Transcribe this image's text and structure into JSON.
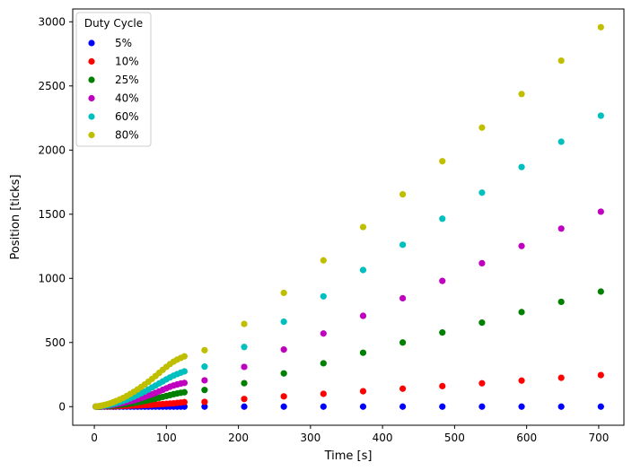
{
  "chart_data": {
    "type": "scatter",
    "title": "",
    "xlabel": "Time [s]",
    "ylabel": "Position [ticks]",
    "xlim": [
      -30,
      735
    ],
    "ylim": [
      -145,
      3100
    ],
    "xticks": [
      0,
      100,
      200,
      300,
      400,
      500,
      600,
      700
    ],
    "yticks": [
      0,
      500,
      1000,
      1500,
      2000,
      2500,
      3000
    ],
    "grid": false,
    "legend": {
      "title": "Duty Cycle",
      "placement": "top-left"
    },
    "x": [
      2,
      4,
      6,
      8,
      10,
      14,
      18,
      22,
      26,
      30,
      35,
      40,
      45,
      50,
      55,
      60,
      65,
      70,
      75,
      80,
      85,
      90,
      95,
      100,
      105,
      110,
      115,
      120,
      125,
      153,
      208,
      263,
      318,
      373,
      428,
      483,
      538,
      593,
      648,
      703
    ],
    "series": [
      {
        "name": "5%",
        "color": "#0000ff",
        "values": [
          0,
          0,
          0,
          0,
          0,
          0,
          0,
          0,
          0,
          0,
          0,
          0,
          0,
          0,
          0,
          0,
          0,
          0,
          0,
          0,
          0,
          0,
          0,
          0,
          0,
          0,
          0,
          0,
          0,
          0,
          0,
          0,
          0,
          0,
          0,
          0,
          0,
          0,
          0,
          0
        ]
      },
      {
        "name": "10%",
        "color": "#ff0000",
        "values": [
          0,
          0,
          0,
          0,
          1,
          1,
          2,
          2,
          3,
          3,
          4,
          5,
          6,
          7,
          8,
          9,
          10,
          12,
          13,
          14,
          16,
          18,
          20,
          22,
          24,
          26,
          29,
          32,
          35,
          37,
          60,
          80,
          100,
          120,
          140,
          160,
          182,
          203,
          225,
          246
        ]
      },
      {
        "name": "25%",
        "color": "#008000",
        "values": [
          0,
          0,
          1,
          1,
          2,
          3,
          4,
          6,
          8,
          10,
          13,
          16,
          20,
          24,
          28,
          33,
          38,
          44,
          50,
          56,
          62,
          69,
          76,
          83,
          90,
          97,
          103,
          108,
          112,
          130,
          183,
          259,
          338,
          420,
          500,
          578,
          655,
          737,
          817,
          897
        ]
      },
      {
        "name": "40%",
        "color": "#bf00bf",
        "values": [
          0,
          1,
          1,
          2,
          3,
          5,
          8,
          11,
          14,
          18,
          23,
          29,
          35,
          42,
          49,
          57,
          66,
          76,
          86,
          96,
          107,
          119,
          131,
          143,
          155,
          165,
          173,
          180,
          185,
          205,
          310,
          445,
          570,
          708,
          845,
          980,
          1118,
          1252,
          1388,
          1520
        ]
      },
      {
        "name": "60%",
        "color": "#00bfbf",
        "values": [
          0,
          1,
          2,
          3,
          5,
          8,
          12,
          16,
          21,
          27,
          35,
          44,
          54,
          65,
          77,
          90,
          104,
          118,
          133,
          149,
          165,
          181,
          197,
          213,
          228,
          242,
          254,
          265,
          275,
          312,
          465,
          662,
          860,
          1065,
          1262,
          1465,
          1668,
          1868,
          2065,
          2268
        ]
      },
      {
        "name": "80%",
        "color": "#bfbf00",
        "values": [
          0,
          2,
          3,
          5,
          8,
          13,
          19,
          26,
          34,
          43,
          55,
          68,
          83,
          99,
          116,
          134,
          153,
          173,
          194,
          216,
          239,
          263,
          287,
          310,
          332,
          351,
          367,
          380,
          392,
          440,
          645,
          887,
          1140,
          1400,
          1655,
          1913,
          2175,
          2437,
          2697,
          2958
        ]
      }
    ]
  }
}
